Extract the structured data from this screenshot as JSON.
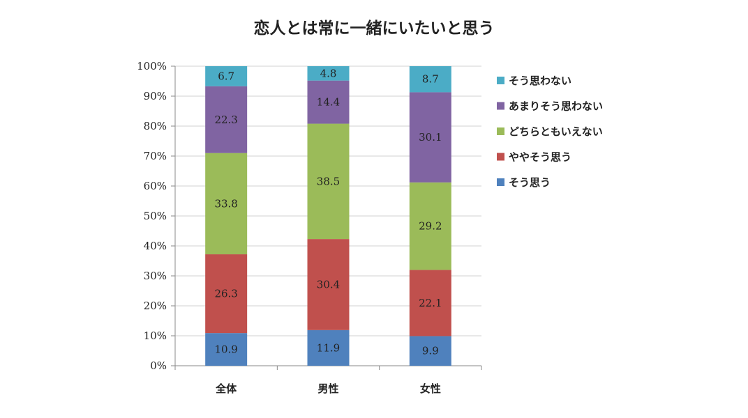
{
  "chart_data": {
    "type": "bar",
    "stacked": true,
    "percent": true,
    "title": "恋人とは常に一緒にいたいと思う",
    "xlabel": "",
    "ylabel": "",
    "ylim": [
      0,
      100
    ],
    "y_ticks": [
      "0%",
      "10%",
      "20%",
      "30%",
      "40%",
      "50%",
      "60%",
      "70%",
      "80%",
      "90%",
      "100%"
    ],
    "categories": [
      "全体",
      "男性",
      "女性"
    ],
    "grid": true,
    "legend_position": "right",
    "series": [
      {
        "name": "そう思う",
        "color": "#4f81bd",
        "values": [
          10.9,
          11.9,
          9.9
        ]
      },
      {
        "name": "ややそう思う",
        "color": "#c0504d",
        "values": [
          26.3,
          30.4,
          22.1
        ]
      },
      {
        "name": "どちらともいえない",
        "color": "#9bbb59",
        "values": [
          33.8,
          38.5,
          29.2
        ]
      },
      {
        "name": "あまりそう思わない",
        "color": "#8064a2",
        "values": [
          22.3,
          14.4,
          30.1
        ]
      },
      {
        "name": "そう思わない",
        "color": "#4bacc6",
        "values": [
          6.7,
          4.8,
          8.7
        ]
      }
    ]
  }
}
